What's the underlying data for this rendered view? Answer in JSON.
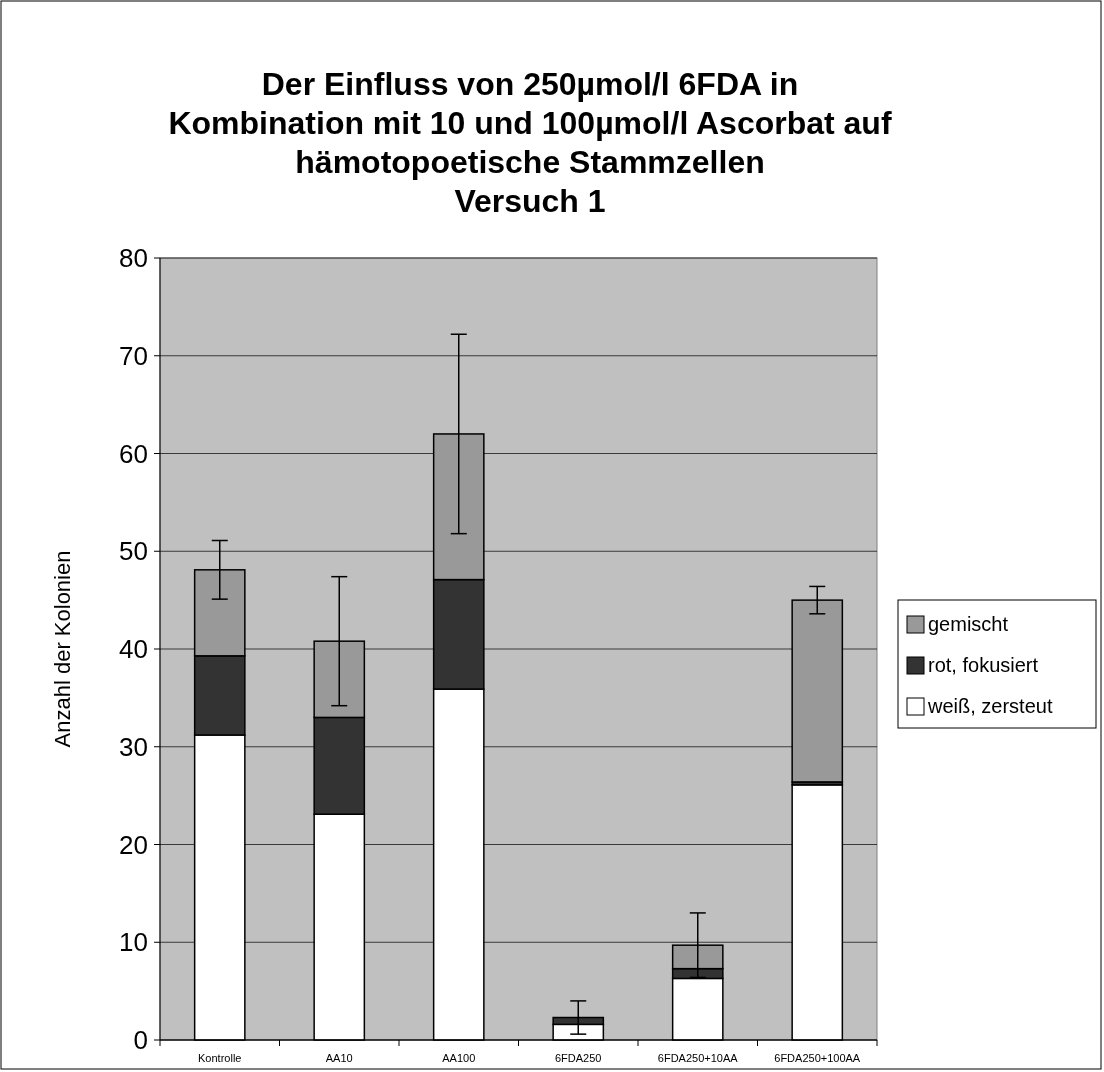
{
  "chart_data": {
    "type": "bar",
    "stacked": true,
    "title": "Der Einfluss von 250µmol/l 6FDA in\nKombination mit 10 und 100µmol/l Ascorbat auf\nhämotopoetische Stammzellen\nVersuch 1",
    "ylabel": "Anzahl der Kolonien",
    "categories": [
      "Kontrolle",
      "AA10",
      "AA100",
      "6FDA250",
      "6FDA250+10AA",
      "6FDA250+100AA"
    ],
    "series": [
      {
        "name": "weiß, zersteut",
        "color": "#ffffff",
        "values": [
          31.2,
          23.1,
          35.9,
          1.6,
          6.3,
          26.1
        ]
      },
      {
        "name": "rot, fokusiert",
        "color": "#333333",
        "values": [
          8.1,
          9.9,
          11.2,
          0.7,
          1.0,
          0.3
        ]
      },
      {
        "name": "gemischt",
        "color": "#999999",
        "values": [
          8.8,
          7.8,
          14.9,
          0,
          2.4,
          18.6
        ],
        "errors": [
          3.0,
          6.6,
          10.2,
          1.7,
          3.3,
          1.4
        ]
      }
    ],
    "ylim": [
      0,
      80
    ],
    "yticks": [
      0,
      10,
      20,
      30,
      40,
      50,
      60,
      70,
      80
    ],
    "grid": "y",
    "legend": "right"
  }
}
